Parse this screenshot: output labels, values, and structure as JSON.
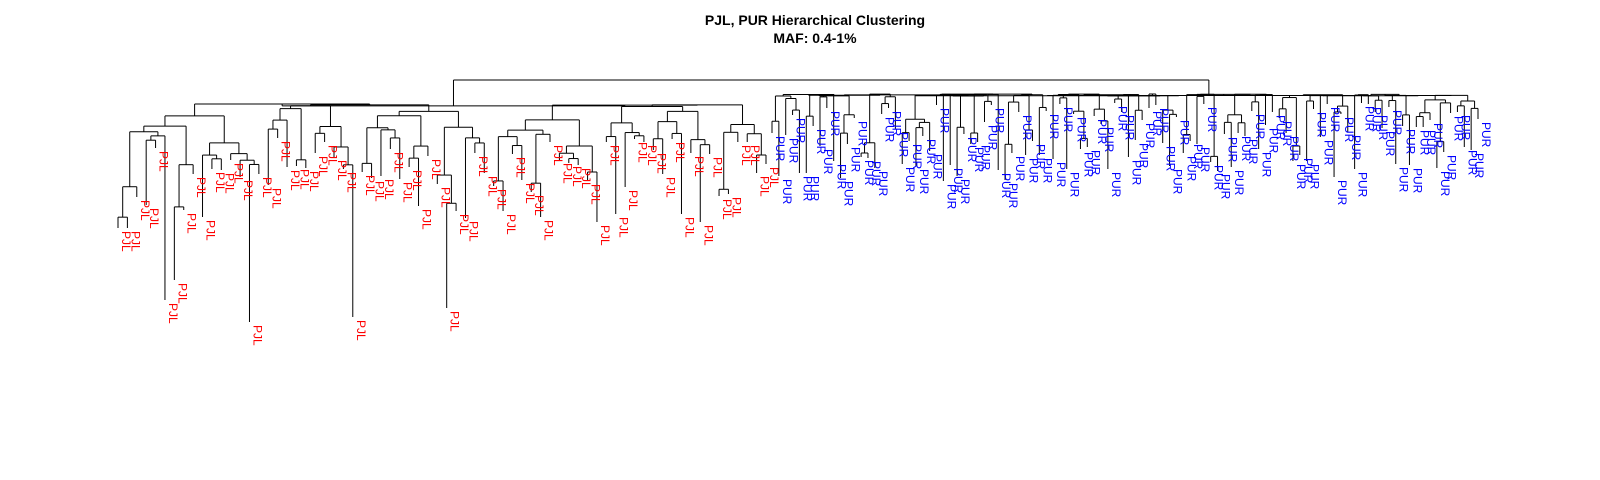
{
  "title": "PJL, PUR Hierarchical Clustering",
  "subtitle": "MAF: 0.4-1%",
  "groups": [
    {
      "label": "PJL",
      "color": "#ff0000",
      "count": 70
    },
    {
      "label": "PUR",
      "color": "#0000ff",
      "count": 104
    }
  ]
}
